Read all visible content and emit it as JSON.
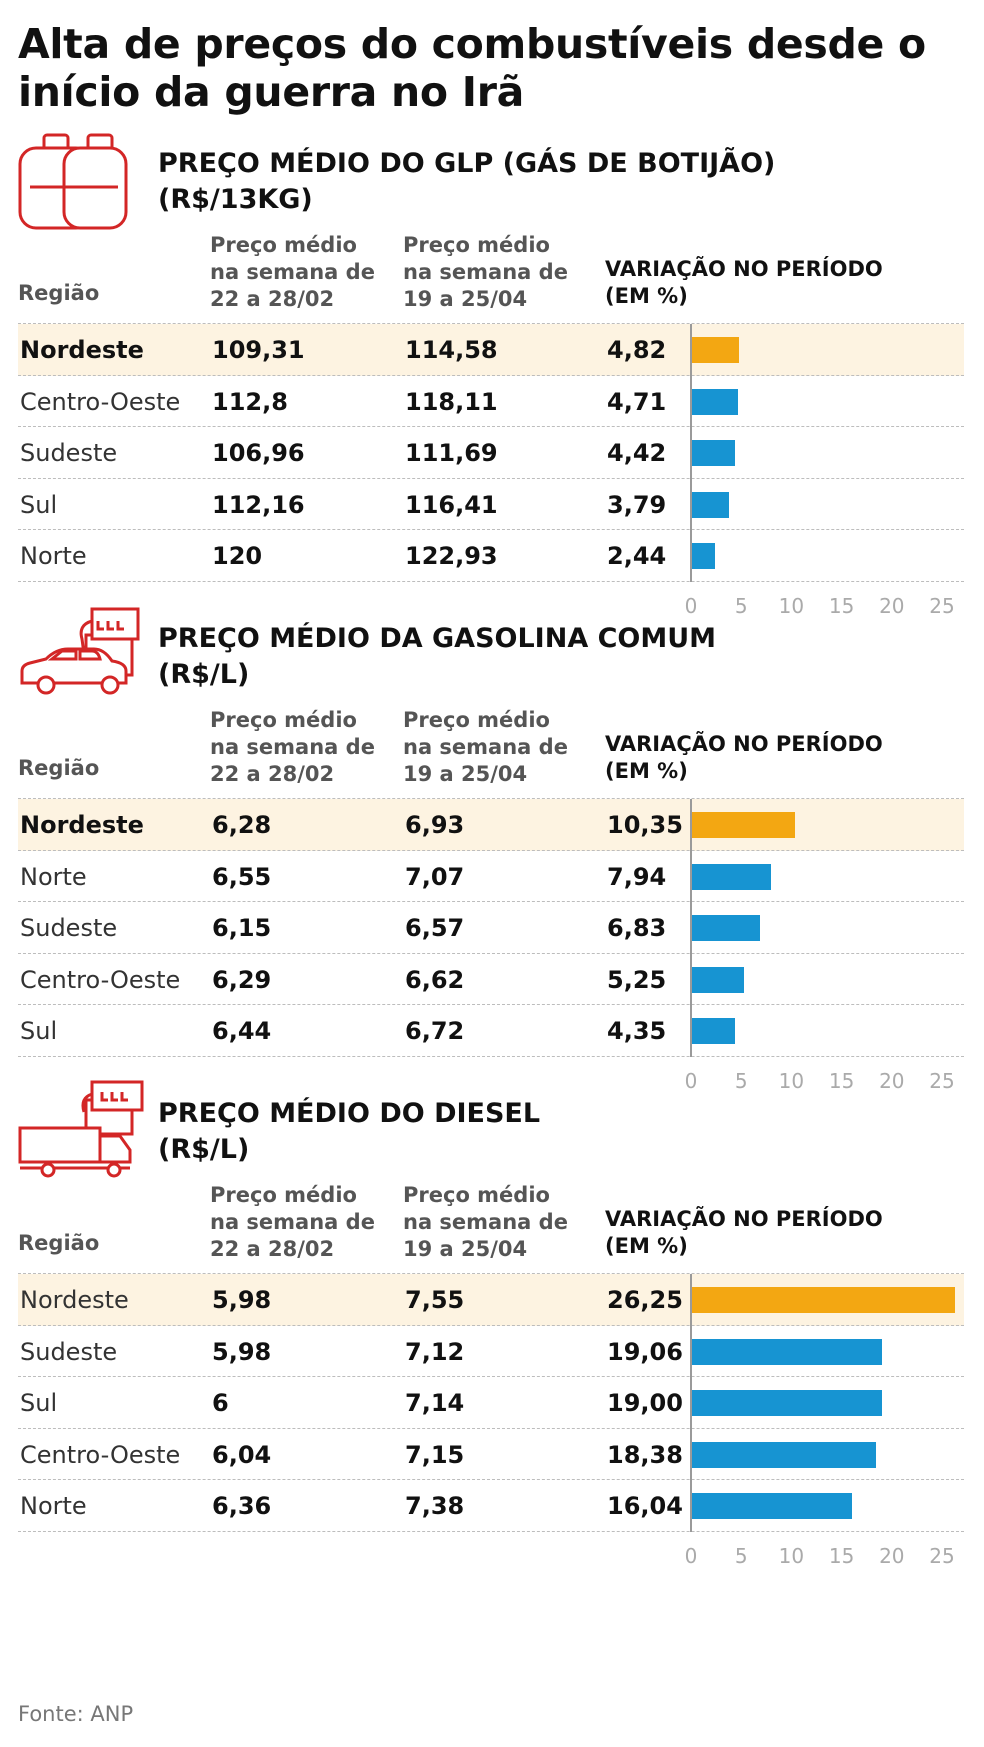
{
  "title": "Alta de preços do combustíveis desde o início da guerra no Irã",
  "source": "Fonte: ANP",
  "colors": {
    "highlight_bar": "#f3a712",
    "bar": "#1794d2",
    "highlight_row": "#fdf3e1",
    "icon": "#d32626"
  },
  "headers": {
    "region": "Região",
    "price1": [
      "Preço médio",
      "na semana de",
      "22 a 28/02"
    ],
    "price2": [
      "Preço médio",
      "na semana de",
      "19 a 25/04"
    ],
    "variation": [
      "VARIAÇÃO NO PERÍODO",
      "(EM %)"
    ]
  },
  "sections": [
    {
      "icon": "gas-cylinder-icon",
      "title_line1": "PREÇO MÉDIO DO GLP (GÁS DE BOTIJÃO)",
      "title_line2": "(R$/13KG)",
      "rows": [
        {
          "region": "Nordeste",
          "price1": "109,31",
          "price2": "114,58",
          "variation": "4,82",
          "highlight": true,
          "region_bold": true
        },
        {
          "region": "Centro-Oeste",
          "price1": "112,8",
          "price2": "118,11",
          "variation": "4,71"
        },
        {
          "region": "Sudeste",
          "price1": "106,96",
          "price2": "111,69",
          "variation": "4,42"
        },
        {
          "region": "Sul",
          "price1": "112,16",
          "price2": "116,41",
          "variation": "3,79"
        },
        {
          "region": "Norte",
          "price1": "120",
          "price2": "122,93",
          "variation": "2,44"
        }
      ]
    },
    {
      "icon": "car-fuel-pump-icon",
      "title_line1": "PREÇO MÉDIO DA GASOLINA COMUM",
      "title_line2": "(R$/L)",
      "rows": [
        {
          "region": "Nordeste",
          "price1": "6,28",
          "price2": "6,93",
          "variation": "10,35",
          "highlight": true,
          "region_bold": true
        },
        {
          "region": "Norte",
          "price1": "6,55",
          "price2": "7,07",
          "variation": "7,94"
        },
        {
          "region": "Sudeste",
          "price1": "6,15",
          "price2": "6,57",
          "variation": "6,83"
        },
        {
          "region": "Centro-Oeste",
          "price1": "6,29",
          "price2": "6,62",
          "variation": "5,25"
        },
        {
          "region": "Sul",
          "price1": "6,44",
          "price2": "6,72",
          "variation": "4,35"
        }
      ]
    },
    {
      "icon": "truck-fuel-pump-icon",
      "title_line1": "PREÇO MÉDIO DO DIESEL",
      "title_line2": "(R$/L)",
      "rows": [
        {
          "region": "Nordeste",
          "price1": "5,98",
          "price2": "7,55",
          "variation": "26,25",
          "highlight": true,
          "region_bold": false
        },
        {
          "region": "Sudeste",
          "price1": "5,98",
          "price2": "7,12",
          "variation": "19,06"
        },
        {
          "region": "Sul",
          "price1": "6",
          "price2": "7,14",
          "variation": "19,00"
        },
        {
          "region": "Centro-Oeste",
          "price1": "6,04",
          "price2": "7,15",
          "variation": "18,38"
        },
        {
          "region": "Norte",
          "price1": "6,36",
          "price2": "7,38",
          "variation": "16,04"
        }
      ]
    }
  ],
  "chart_data": [
    {
      "type": "bar",
      "orientation": "horizontal",
      "title": "PREÇO MÉDIO DO GLP (GÁS DE BOTIJÃO) (R$/13KG)",
      "xlabel": "VARIAÇÃO NO PERÍODO (EM %)",
      "categories": [
        "Nordeste",
        "Centro-Oeste",
        "Sudeste",
        "Sul",
        "Norte"
      ],
      "values": [
        4.82,
        4.71,
        4.42,
        3.79,
        2.44
      ],
      "xlim": [
        0,
        25
      ],
      "ticks": [
        0,
        5,
        10,
        15,
        20,
        25
      ]
    },
    {
      "type": "bar",
      "orientation": "horizontal",
      "title": "PREÇO MÉDIO DA GASOLINA COMUM (R$/L)",
      "xlabel": "VARIAÇÃO NO PERÍODO (EM %)",
      "categories": [
        "Nordeste",
        "Norte",
        "Sudeste",
        "Centro-Oeste",
        "Sul"
      ],
      "values": [
        10.35,
        7.94,
        6.83,
        5.25,
        4.35
      ],
      "xlim": [
        0,
        25
      ],
      "ticks": [
        0,
        5,
        10,
        15,
        20,
        25
      ]
    },
    {
      "type": "bar",
      "orientation": "horizontal",
      "title": "PREÇO MÉDIO DO DIESEL (R$/L)",
      "xlabel": "VARIAÇÃO NO PERÍODO (EM %)",
      "categories": [
        "Nordeste",
        "Sudeste",
        "Sul",
        "Centro-Oeste",
        "Norte"
      ],
      "values": [
        26.25,
        19.06,
        19.0,
        18.38,
        16.04
      ],
      "xlim": [
        0,
        25
      ],
      "ticks": [
        0,
        5,
        10,
        15,
        20,
        25
      ]
    }
  ]
}
